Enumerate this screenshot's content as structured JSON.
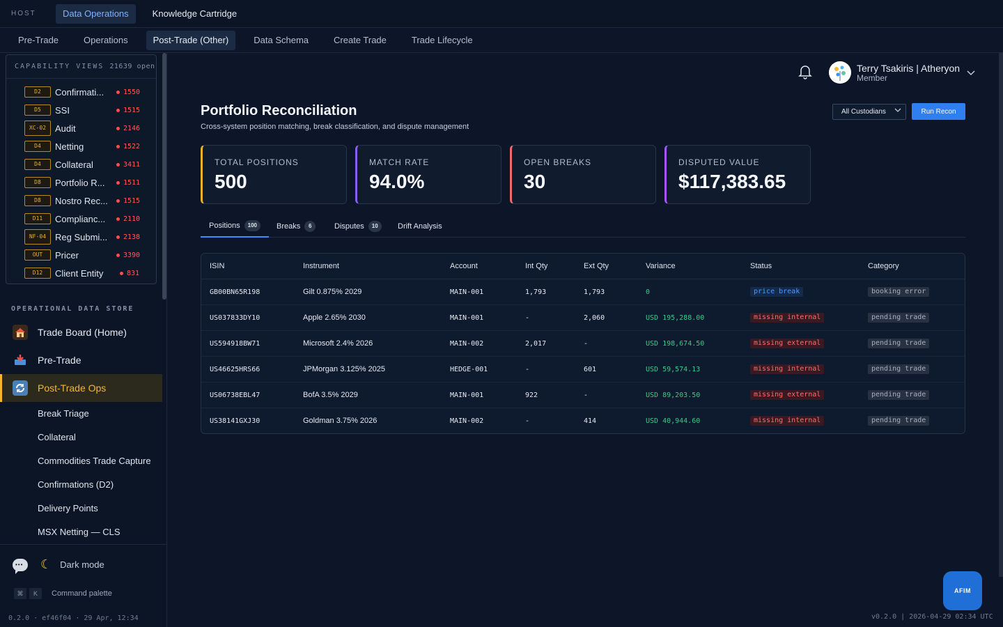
{
  "topbar": {
    "host_label": "HOST",
    "tabs": [
      {
        "label": "Data Operations"
      },
      {
        "label": "Knowledge Cartridge"
      }
    ]
  },
  "subnav": {
    "tabs": [
      {
        "label": "Pre-Trade"
      },
      {
        "label": "Operations"
      },
      {
        "label": "Post-Trade (Other)"
      },
      {
        "label": "Data Schema"
      },
      {
        "label": "Create Trade"
      },
      {
        "label": "Trade Lifecycle"
      }
    ]
  },
  "capability": {
    "title": "CAPABILITY VIEWS",
    "open_count": "21639 open",
    "items": [
      {
        "badge": "D2",
        "label": "Confirmati...",
        "count": "1550"
      },
      {
        "badge": "D5",
        "label": "SSI",
        "count": "1515"
      },
      {
        "badge": "XC-02",
        "label": "Audit",
        "count": "2146"
      },
      {
        "badge": "D4",
        "label": "Netting",
        "count": "1522"
      },
      {
        "badge": "D4",
        "label": "Collateral",
        "count": "3411"
      },
      {
        "badge": "D8",
        "label": "Portfolio R...",
        "count": "1511"
      },
      {
        "badge": "D8",
        "label": "Nostro Rec...",
        "count": "1515"
      },
      {
        "badge": "D11",
        "label": "Complianc...",
        "count": "2110"
      },
      {
        "badge": "NF-04",
        "label": "Reg Submi...",
        "count": "2138"
      },
      {
        "badge": "OUT",
        "label": "Pricer",
        "count": "3390"
      },
      {
        "badge": "D12",
        "label": "Client Entity",
        "count": "831"
      }
    ]
  },
  "ods": {
    "title": "OPERATIONAL DATA STORE",
    "nav": [
      {
        "label": "Trade Board (Home)",
        "icon": "house-icon"
      },
      {
        "label": "Pre-Trade",
        "icon": "inbox-icon"
      },
      {
        "label": "Post-Trade Ops",
        "icon": "cycle-icon"
      }
    ],
    "sub_items": [
      {
        "label": "Break Triage"
      },
      {
        "label": "Collateral"
      },
      {
        "label": "Commodities Trade Capture"
      },
      {
        "label": "Confirmations (D2)"
      },
      {
        "label": "Delivery Points"
      },
      {
        "label": "MSX Netting — CLS"
      }
    ]
  },
  "sidebar_footer": {
    "dark_mode": "Dark mode",
    "kbd_1": "⌘",
    "kbd_2": "K",
    "command_palette": "Command palette",
    "build": "0.2.0 · ef46f04 · 29 Apr, 12:34"
  },
  "user": {
    "name": "Terry Tsakiris | Atheryon",
    "role": "Member"
  },
  "page": {
    "title": "Portfolio Reconciliation",
    "subtitle": "Cross-system position matching, break classification, and dispute management",
    "custodian_select": "All Custodians",
    "run_button": "Run Recon"
  },
  "kpis": [
    {
      "label": "TOTAL POSITIONS",
      "value": "500",
      "color": "#e8b32c"
    },
    {
      "label": "MATCH RATE",
      "value": "94.0%",
      "color": "#8b5cf6"
    },
    {
      "label": "OPEN BREAKS",
      "value": "30",
      "color": "#ef6b6b"
    },
    {
      "label": "DISPUTED VALUE",
      "value": "$117,383.65",
      "color": "#a855f7"
    }
  ],
  "tabs": [
    {
      "label": "Positions",
      "count": "100"
    },
    {
      "label": "Breaks",
      "count": "6"
    },
    {
      "label": "Disputes",
      "count": "10"
    },
    {
      "label": "Drift Analysis"
    }
  ],
  "table": {
    "headers": [
      "ISIN",
      "Instrument",
      "Account",
      "Int Qty",
      "Ext Qty",
      "Variance",
      "Status",
      "Category"
    ],
    "rows": [
      {
        "isin": "GB00BN65R198",
        "instrument": "Gilt 0.875% 2029",
        "account": "MAIN-001",
        "int_qty": "1,793",
        "ext_qty": "1,793",
        "variance": "0",
        "status": "price break",
        "category": "booking error"
      },
      {
        "isin": "US037833DY10",
        "instrument": "Apple 2.65% 2030",
        "account": "MAIN-001",
        "int_qty": "-",
        "ext_qty": "2,060",
        "variance": "USD 195,288.00",
        "status": "missing internal",
        "category": "pending trade"
      },
      {
        "isin": "US594918BW71",
        "instrument": "Microsoft 2.4% 2026",
        "account": "MAIN-002",
        "int_qty": "2,017",
        "ext_qty": "-",
        "variance": "USD 198,674.50",
        "status": "missing external",
        "category": "pending trade"
      },
      {
        "isin": "US46625HRS66",
        "instrument": "JPMorgan 3.125% 2025",
        "account": "HEDGE-001",
        "int_qty": "-",
        "ext_qty": "601",
        "variance": "USD 59,574.13",
        "status": "missing internal",
        "category": "pending trade"
      },
      {
        "isin": "US06738EBL47",
        "instrument": "BofA 3.5% 2029",
        "account": "MAIN-001",
        "int_qty": "922",
        "ext_qty": "-",
        "variance": "USD 89,203.50",
        "status": "missing external",
        "category": "pending trade"
      },
      {
        "isin": "US38141GXJ30",
        "instrument": "Goldman 3.75% 2026",
        "account": "MAIN-002",
        "int_qty": "-",
        "ext_qty": "414",
        "variance": "USD 40,944.60",
        "status": "missing internal",
        "category": "pending trade"
      }
    ]
  },
  "afim_button": "AFIM",
  "version": "v0.2.0 | 2026-04-29 02:34 UTC"
}
